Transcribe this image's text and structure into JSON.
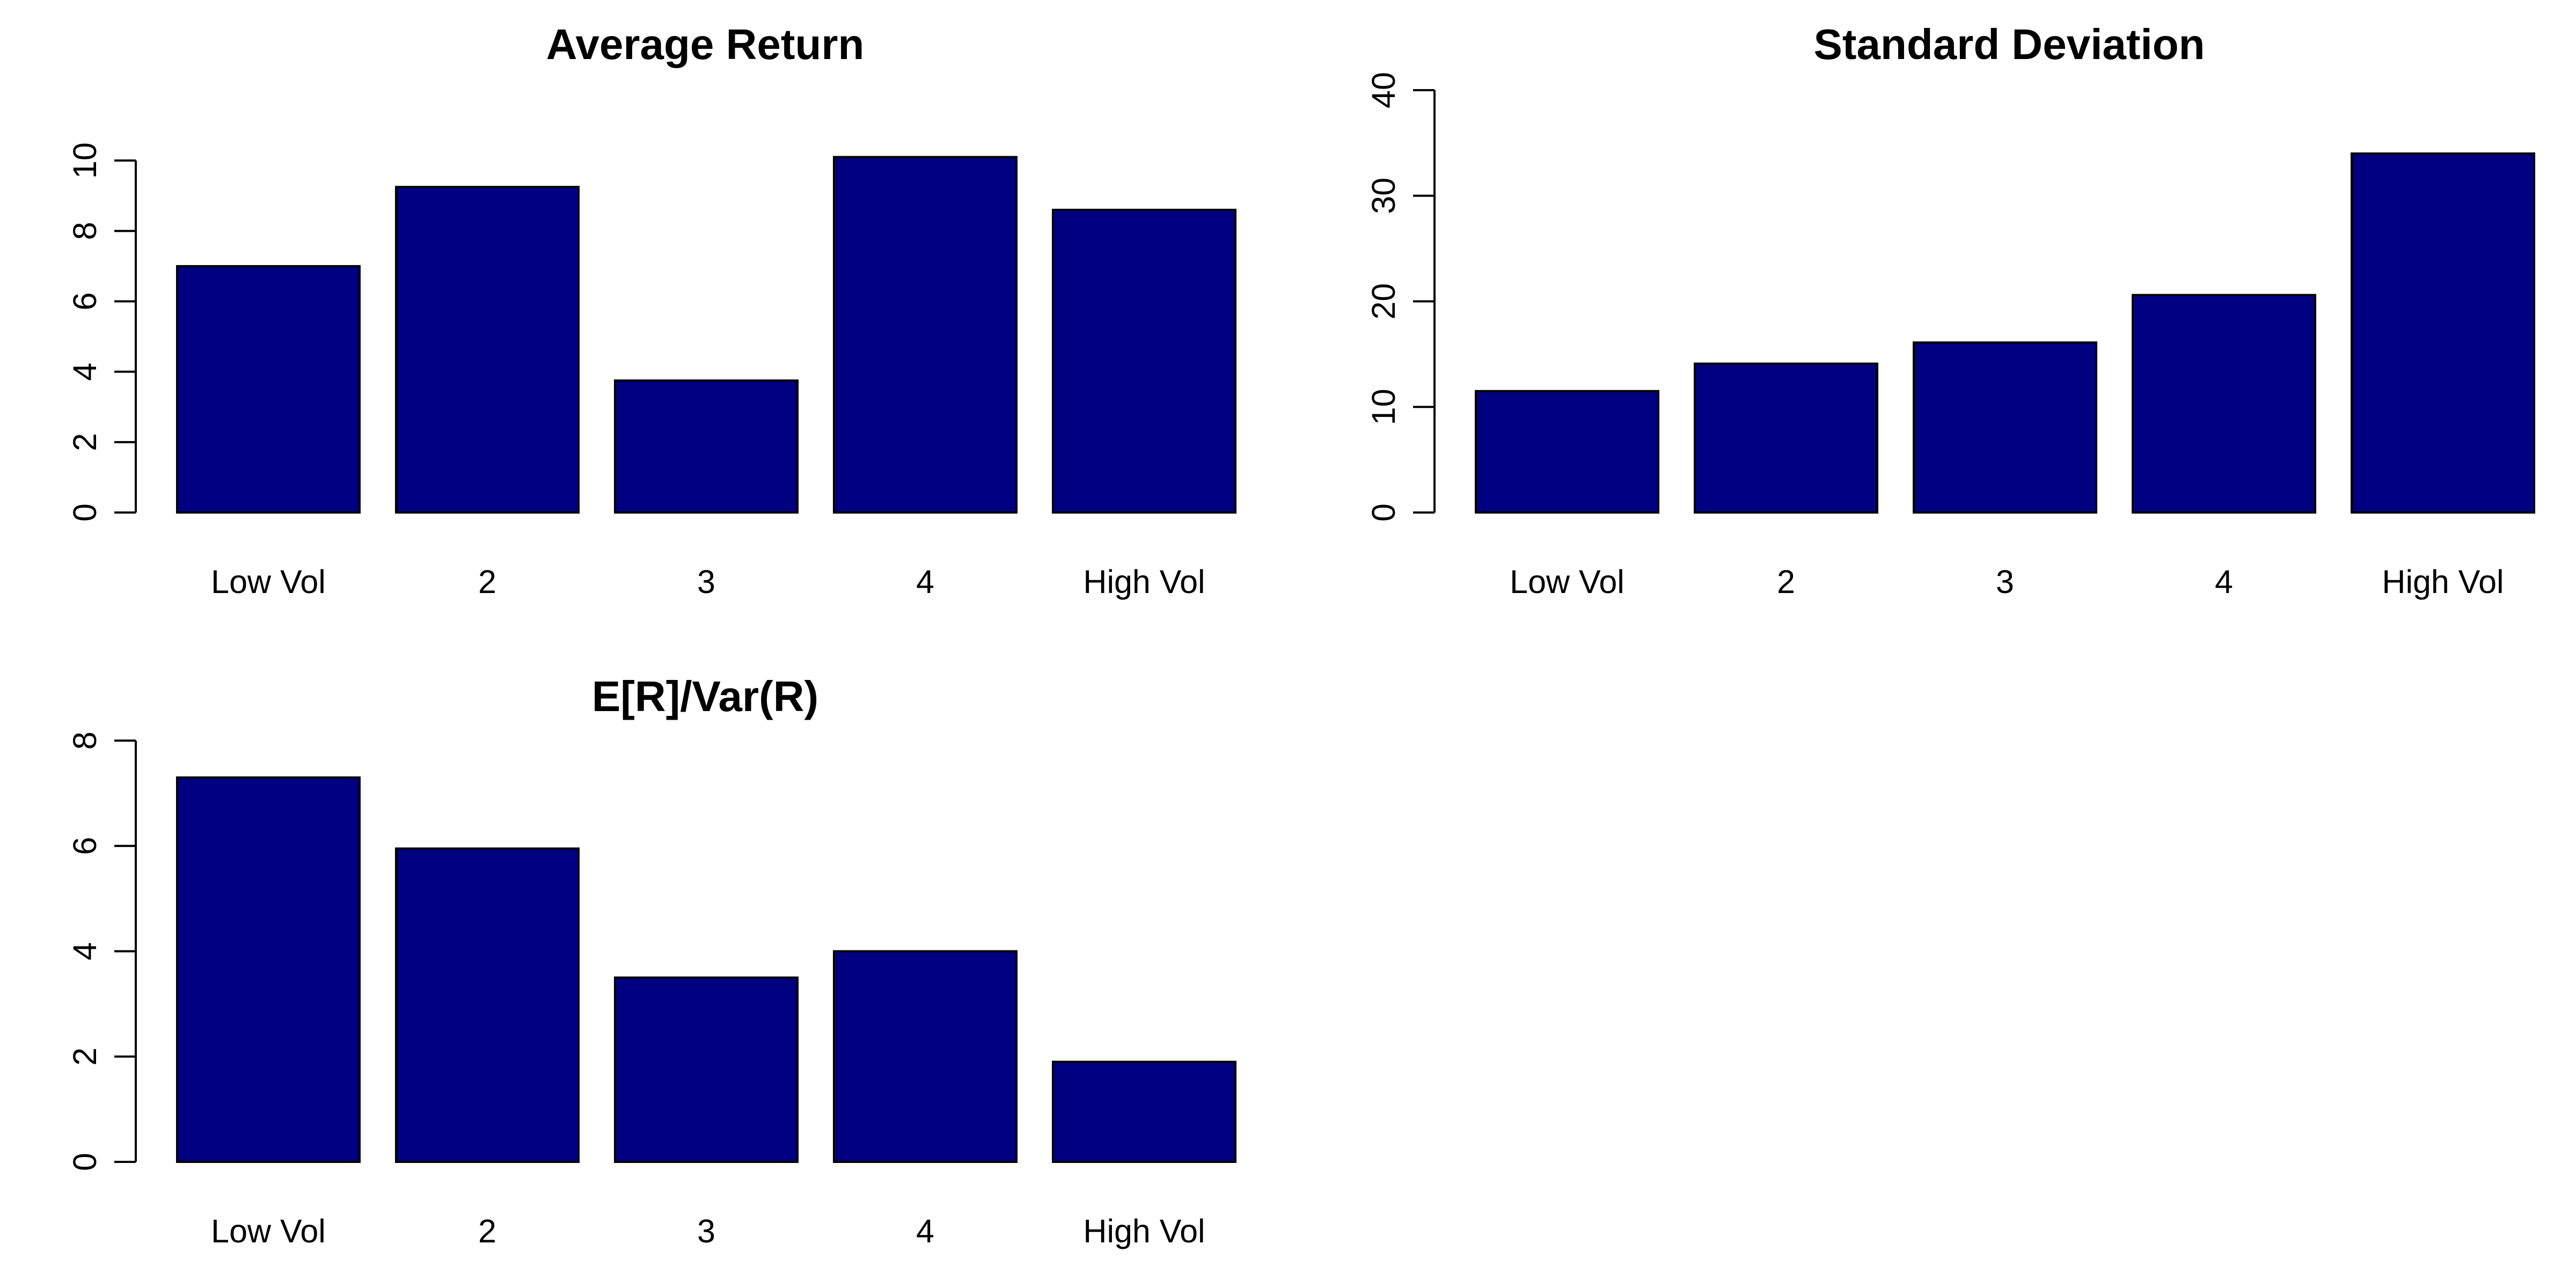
{
  "figure": {
    "bar_color": "#000080",
    "edge_color": "#000000",
    "background": "#ffffff"
  },
  "chart_data": [
    {
      "type": "bar",
      "title": "Average Return",
      "categories": [
        "Low Vol",
        "2",
        "3",
        "4",
        "High Vol"
      ],
      "values": [
        7.0,
        9.25,
        3.75,
        10.1,
        8.6
      ],
      "ylim": [
        0,
        12
      ],
      "yticks": [
        0,
        2,
        4,
        6,
        8,
        10
      ],
      "xlabel": "",
      "ylabel": "",
      "grid": false
    },
    {
      "type": "bar",
      "title": "Standard Deviation",
      "categories": [
        "Low Vol",
        "2",
        "3",
        "4",
        "High Vol"
      ],
      "values": [
        11.5,
        14.1,
        16.1,
        20.6,
        34.0
      ],
      "ylim": [
        0,
        40
      ],
      "yticks": [
        0,
        10,
        20,
        30,
        40
      ],
      "xlabel": "",
      "ylabel": "",
      "grid": false
    },
    {
      "type": "bar",
      "title": "E[R]/Var(R)",
      "categories": [
        "Low Vol",
        "2",
        "3",
        "4",
        "High Vol"
      ],
      "values": [
        7.3,
        5.95,
        3.5,
        4.0,
        1.9
      ],
      "ylim": [
        0,
        8
      ],
      "yticks": [
        0,
        2,
        4,
        6,
        8
      ],
      "xlabel": "",
      "ylabel": "",
      "grid": false
    }
  ]
}
